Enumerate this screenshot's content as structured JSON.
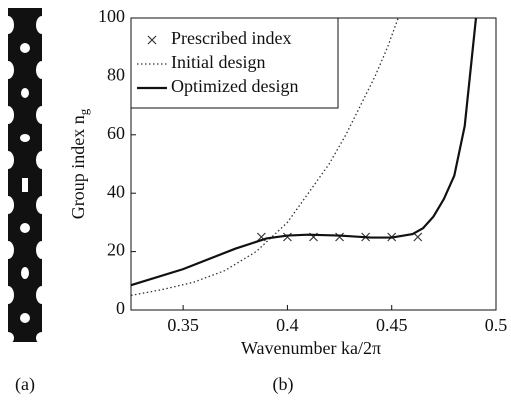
{
  "chart_data": {
    "type": "line",
    "x_label": "Wavenumber ka/2π",
    "y_label": "Group index n",
    "y_label_subscript": "g",
    "panel_labels": [
      "(a)",
      "(b)"
    ],
    "xlim": [
      0.325,
      0.5
    ],
    "ylim": [
      0,
      100
    ],
    "xticks": [
      0.35,
      0.4,
      0.45,
      0.5
    ],
    "yticks": [
      0,
      20,
      40,
      60,
      80,
      100
    ],
    "legend": "upper left",
    "series": [
      {
        "name": "Prescribed index",
        "color": "#333333",
        "style": "marker",
        "x": [
          0.3875,
          0.4,
          0.4125,
          0.425,
          0.4375,
          0.45,
          0.4625
        ],
        "values": [
          25,
          25,
          25,
          25,
          25,
          25,
          25
        ]
      },
      {
        "name": "Initial design",
        "color": "#333333",
        "style": "dotted",
        "x": [
          0.325,
          0.34,
          0.355,
          0.37,
          0.385,
          0.4,
          0.41,
          0.42,
          0.428,
          0.435,
          0.442,
          0.448,
          0.4531
        ],
        "values": [
          5,
          7,
          9.5,
          13.5,
          20,
          30,
          40,
          50,
          60,
          70,
          80,
          90,
          100
        ]
      },
      {
        "name": "Optimized design",
        "color": "#111111",
        "style": "solid",
        "x": [
          0.325,
          0.35,
          0.375,
          0.39,
          0.4,
          0.41,
          0.425,
          0.44,
          0.45,
          0.46,
          0.465,
          0.47,
          0.475,
          0.48,
          0.485,
          0.4904
        ],
        "values": [
          8.5,
          14,
          21,
          24.5,
          25.5,
          25.8,
          25.5,
          24.8,
          24.8,
          26,
          28,
          32,
          38,
          46,
          63,
          100
        ]
      }
    ]
  }
}
